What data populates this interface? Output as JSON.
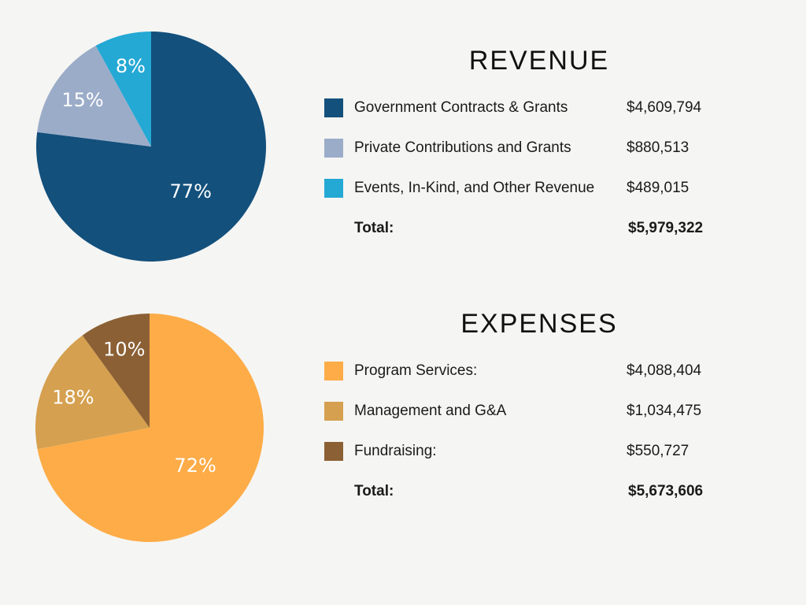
{
  "chart_data": [
    {
      "type": "pie",
      "title": "REVENUE",
      "slices": [
        {
          "label": "Government Contracts & Grants",
          "amount": "$4,609,794",
          "percent": 77,
          "color": "#13507c"
        },
        {
          "label": "Private Contributions and Grants",
          "amount": "$880,513",
          "percent": 15,
          "color": "#9bacc9"
        },
        {
          "label": "Events, In-Kind, and Other Revenue",
          "amount": "$489,015",
          "percent": 8,
          "color": "#24a8d4"
        }
      ],
      "total_label": "Total:",
      "total_value": "$5,979,322"
    },
    {
      "type": "pie",
      "title": "EXPENSES",
      "slices": [
        {
          "label": "Program Services:",
          "amount": "$4,088,404",
          "percent": 72,
          "color": "#fdac48"
        },
        {
          "label": "Management and G&A",
          "amount": "$1,034,475",
          "percent": 18,
          "color": "#d5a04f"
        },
        {
          "label": "Fundraising:",
          "amount": "$550,727",
          "percent": 10,
          "color": "#8b6034"
        }
      ],
      "total_label": "Total:",
      "total_value": "$5,673,606"
    }
  ]
}
